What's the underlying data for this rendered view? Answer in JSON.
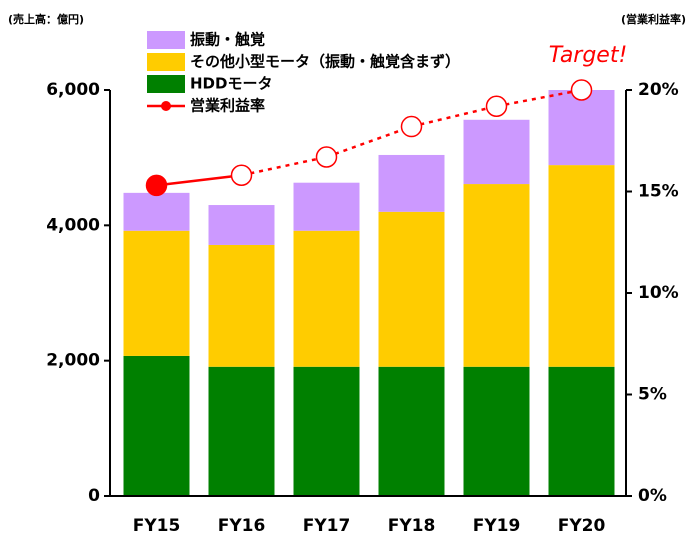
{
  "chart_data": {
    "type": "bar_line",
    "y_title": "(売上高：億円)",
    "y2_title": "(営業利益率)",
    "annotation": "Target!",
    "categories": [
      "FY15",
      "FY16",
      "FY17",
      "FY18",
      "FY19",
      "FY20"
    ],
    "series": [
      {
        "name": "HDDモータ",
        "color": "#008000",
        "values": [
          2070,
          1910,
          1910,
          1910,
          1910,
          1910
        ]
      },
      {
        "name": "その他小型モータ（振動・触覚含まず）",
        "color": "#ffcc00",
        "values": [
          1850,
          1800,
          2010,
          2290,
          2700,
          2980
        ]
      },
      {
        "name": "振動・触覚",
        "color": "#cc99ff",
        "values": [
          560,
          590,
          710,
          840,
          950,
          1110
        ]
      },
      {
        "name": "営業利益率",
        "color": "#ff0000",
        "axis": "y2",
        "values": [
          15.3,
          15.8,
          16.7,
          18.2,
          19.2,
          20.0
        ],
        "marker_filled": [
          true,
          false,
          false,
          false,
          false,
          false
        ],
        "segment_dashed": [
          false,
          true,
          true,
          true,
          true
        ]
      }
    ],
    "ylim": [
      0,
      6000
    ],
    "yticks": [
      {
        "value": 0,
        "label": "0"
      },
      {
        "value": 2000,
        "label": "2,000"
      },
      {
        "value": 4000,
        "label": "4,000"
      },
      {
        "value": 6000,
        "label": "6,000"
      }
    ],
    "y2lim": [
      0,
      20
    ],
    "y2ticks": [
      {
        "value": 0,
        "label": "0%"
      },
      {
        "value": 5,
        "label": "5%"
      },
      {
        "value": 10,
        "label": "10%"
      },
      {
        "value": 15,
        "label": "15%"
      },
      {
        "value": 20,
        "label": "20%"
      }
    ]
  }
}
